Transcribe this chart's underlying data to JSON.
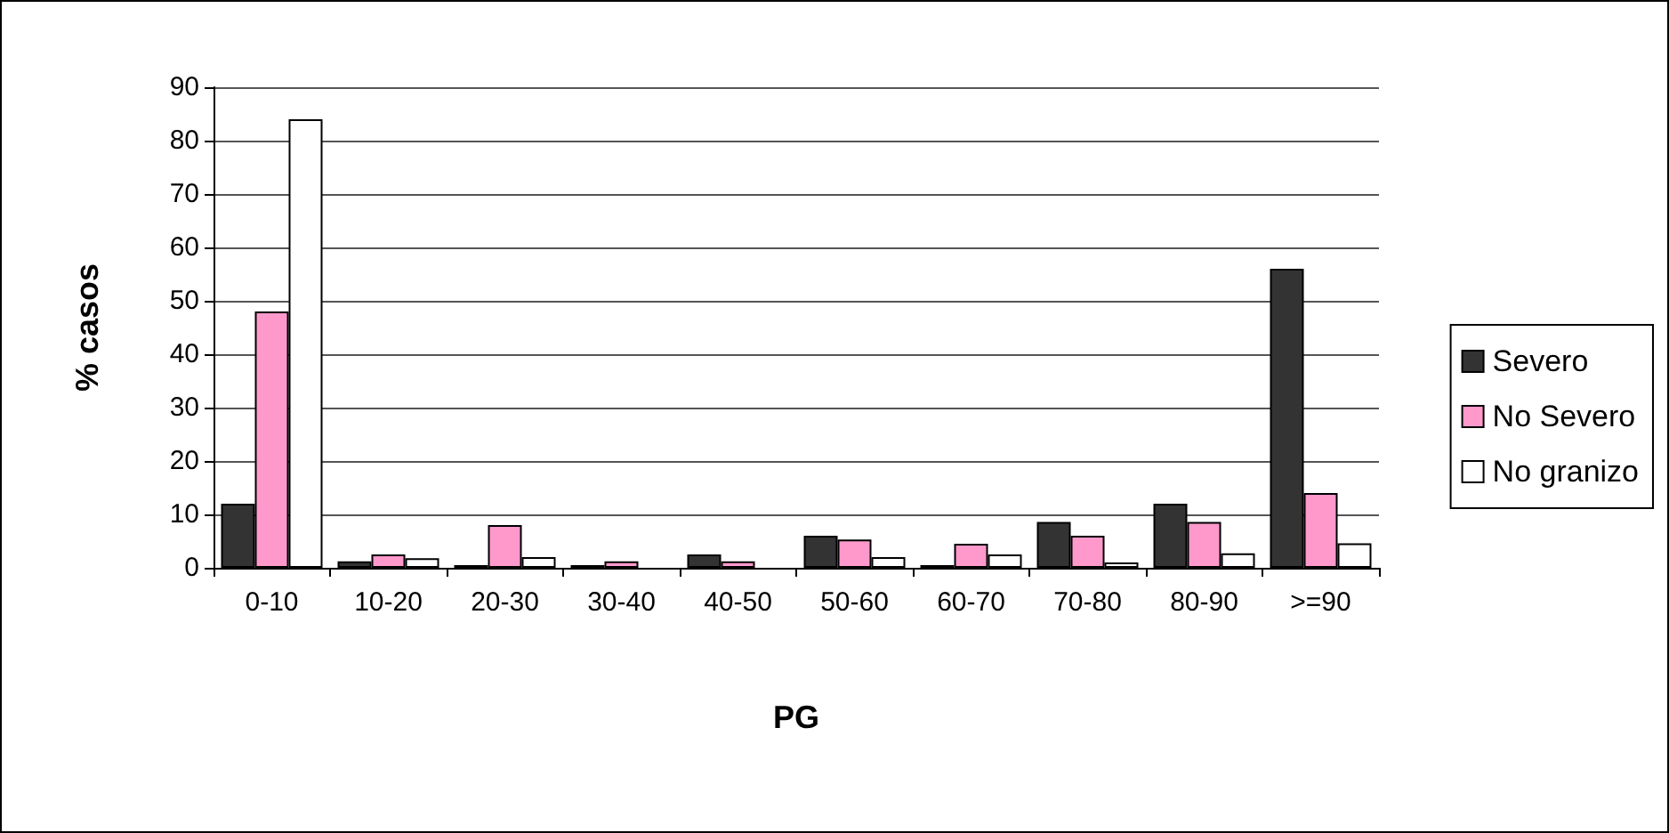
{
  "chart_data": {
    "type": "bar",
    "xlabel": "PG",
    "ylabel": "% casos",
    "categories": [
      "0-10",
      "10-20",
      "20-30",
      "30-40",
      "40-50",
      "50-60",
      "60-70",
      "70-80",
      "80-90",
      ">=90"
    ],
    "series": [
      {
        "name": "Severo",
        "color": "#333333",
        "values": [
          12,
          1.2,
          0.5,
          0.5,
          2.5,
          6,
          0.5,
          8.6,
          12,
          56
        ]
      },
      {
        "name": "No Severo",
        "color": "#ff99cc",
        "values": [
          48,
          2.5,
          8,
          1.2,
          1.2,
          5.3,
          4.5,
          6,
          8.6,
          14
        ]
      },
      {
        "name": "No granizo",
        "color": "#ffffff",
        "values": [
          84,
          1.8,
          2,
          null,
          null,
          2,
          2.5,
          1,
          2.7,
          4.6
        ]
      }
    ],
    "ylim": [
      0,
      90
    ],
    "yticks": [
      0,
      10,
      20,
      30,
      40,
      50,
      60,
      70,
      80,
      90
    ],
    "grid": "y",
    "legend": "right"
  }
}
